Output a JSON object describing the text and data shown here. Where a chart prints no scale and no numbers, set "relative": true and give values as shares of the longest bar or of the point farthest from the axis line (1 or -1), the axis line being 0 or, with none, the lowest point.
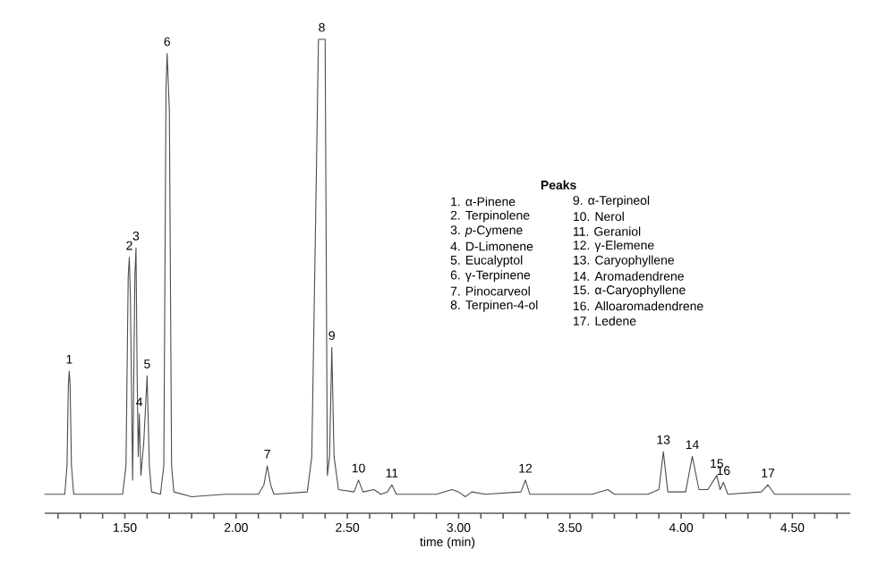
{
  "chart_data": {
    "type": "line",
    "relative": true,
    "xlabel": "time (min)",
    "marker": "none",
    "line_style": "solid",
    "xlim": [
      1.14,
      4.76
    ],
    "xticks": [
      {
        "value": 1.2,
        "label": null
      },
      {
        "value": 1.3,
        "label": null
      },
      {
        "value": 1.4,
        "label": null
      },
      {
        "value": 1.5,
        "label": "1.50"
      },
      {
        "value": 1.6,
        "label": null
      },
      {
        "value": 1.7,
        "label": null
      },
      {
        "value": 1.8,
        "label": null
      },
      {
        "value": 1.9,
        "label": null
      },
      {
        "value": 2.0,
        "label": "2.00"
      },
      {
        "value": 2.1,
        "label": null
      },
      {
        "value": 2.2,
        "label": null
      },
      {
        "value": 2.3,
        "label": null
      },
      {
        "value": 2.4,
        "label": null
      },
      {
        "value": 2.5,
        "label": "2.50"
      },
      {
        "value": 2.6,
        "label": null
      },
      {
        "value": 2.7,
        "label": null
      },
      {
        "value": 2.8,
        "label": null
      },
      {
        "value": 2.9,
        "label": null
      },
      {
        "value": 3.0,
        "label": "3.00"
      },
      {
        "value": 3.1,
        "label": null
      },
      {
        "value": 3.2,
        "label": null
      },
      {
        "value": 3.3,
        "label": null
      },
      {
        "value": 3.4,
        "label": null
      },
      {
        "value": 3.5,
        "label": "3.50"
      },
      {
        "value": 3.6,
        "label": null
      },
      {
        "value": 3.7,
        "label": null
      },
      {
        "value": 3.8,
        "label": null
      },
      {
        "value": 3.9,
        "label": null
      },
      {
        "value": 4.0,
        "label": "4.00"
      },
      {
        "value": 4.1,
        "label": null
      },
      {
        "value": 4.2,
        "label": null
      },
      {
        "value": 4.3,
        "label": null
      },
      {
        "value": 4.4,
        "label": null
      },
      {
        "value": 4.5,
        "label": "4.50"
      },
      {
        "value": 4.6,
        "label": null
      },
      {
        "value": 4.7,
        "label": null
      }
    ],
    "series": [
      {
        "color": "#4d4d4d",
        "x": [
          1.14,
          1.23,
          1.24,
          1.246,
          1.25,
          1.254,
          1.26,
          1.27,
          1.49,
          1.505,
          1.515,
          1.52,
          1.525,
          1.535,
          1.545,
          1.55,
          1.555,
          1.56,
          1.565,
          1.572,
          1.585,
          1.6,
          1.61,
          1.62,
          1.66,
          1.675,
          1.685,
          1.69,
          1.7,
          1.71,
          1.72,
          1.8,
          1.95,
          2.1,
          2.125,
          2.14,
          2.155,
          2.17,
          2.32,
          2.34,
          2.36,
          2.37,
          2.4,
          2.41,
          2.42,
          2.43,
          2.44,
          2.46,
          2.53,
          2.55,
          2.57,
          2.62,
          2.65,
          2.68,
          2.7,
          2.72,
          2.9,
          2.97,
          3.0,
          3.03,
          3.06,
          3.12,
          3.28,
          3.3,
          3.32,
          3.6,
          3.67,
          3.7,
          3.85,
          3.9,
          3.92,
          3.94,
          4.02,
          4.05,
          4.08,
          4.12,
          4.16,
          4.175,
          4.19,
          4.21,
          4.36,
          4.39,
          4.42,
          4.76
        ],
        "values": [
          0.04,
          0.04,
          0.1,
          0.27,
          0.3,
          0.27,
          0.1,
          0.04,
          0.04,
          0.1,
          0.5,
          0.54,
          0.45,
          0.07,
          0.5,
          0.56,
          0.3,
          0.12,
          0.21,
          0.08,
          0.15,
          0.29,
          0.1,
          0.045,
          0.04,
          0.1,
          0.9,
          0.97,
          0.85,
          0.1,
          0.045,
          0.035,
          0.04,
          0.04,
          0.06,
          0.1,
          0.06,
          0.04,
          0.045,
          0.12,
          0.7,
          1.0,
          1.0,
          0.08,
          0.12,
          0.35,
          0.12,
          0.05,
          0.045,
          0.07,
          0.045,
          0.05,
          0.04,
          0.045,
          0.06,
          0.04,
          0.04,
          0.05,
          0.045,
          0.035,
          0.045,
          0.04,
          0.045,
          0.07,
          0.04,
          0.04,
          0.05,
          0.04,
          0.04,
          0.05,
          0.13,
          0.045,
          0.045,
          0.12,
          0.05,
          0.05,
          0.08,
          0.05,
          0.065,
          0.04,
          0.045,
          0.06,
          0.04,
          0.04
        ]
      }
    ],
    "annotations": [
      {
        "text": "1",
        "x": 1.25,
        "y": 0.3
      },
      {
        "text": "2",
        "x": 1.52,
        "y": 0.54
      },
      {
        "text": "3",
        "x": 1.55,
        "y": 0.56
      },
      {
        "text": "4",
        "x": 1.565,
        "y": 0.21
      },
      {
        "text": "5",
        "x": 1.6,
        "y": 0.29
      },
      {
        "text": "6",
        "x": 1.69,
        "y": 0.97
      },
      {
        "text": "7",
        "x": 2.14,
        "y": 0.1
      },
      {
        "text": "8",
        "x": 2.385,
        "y": 1.0
      },
      {
        "text": "9",
        "x": 2.43,
        "y": 0.35
      },
      {
        "text": "10",
        "x": 2.55,
        "y": 0.07
      },
      {
        "text": "11",
        "x": 2.7,
        "y": 0.06
      },
      {
        "text": "12",
        "x": 3.3,
        "y": 0.07
      },
      {
        "text": "13",
        "x": 3.92,
        "y": 0.13
      },
      {
        "text": "14",
        "x": 4.05,
        "y": 0.12
      },
      {
        "text": "15",
        "x": 4.16,
        "y": 0.08
      },
      {
        "text": "16",
        "x": 4.19,
        "y": 0.065
      },
      {
        "text": "17",
        "x": 4.39,
        "y": 0.06
      },
      "Peaks",
      "1. α-Pinene",
      "2. Terpinolene",
      "3. *p*-Cymene",
      "4. D-Limonene",
      "5. Eucalyptol",
      "6. γ-Terpinene",
      "7. Pinocarveol",
      "8. Terpinen-4-ol",
      "9. α-Terpineol",
      "10. Nerol",
      "11. Geraniol",
      "12. γ-Elemene",
      "13. Caryophyllene",
      "14. Aromadendrene",
      "15. α-Caryophyllene",
      "16. Alloaromadendrene",
      "17. Ledene"
    ]
  }
}
